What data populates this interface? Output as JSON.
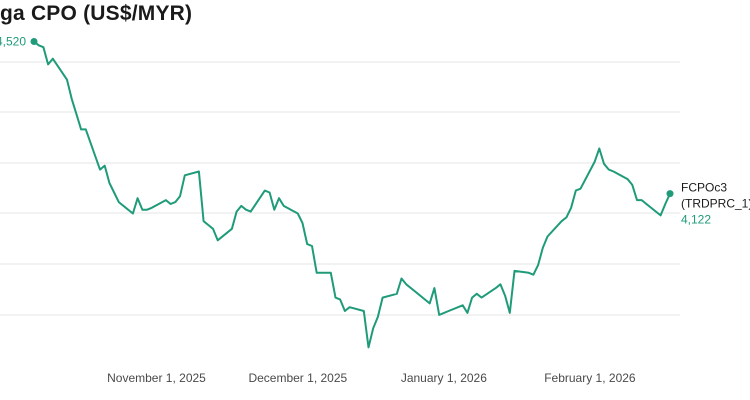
{
  "title_visible": "ga CPO (US$/MYR)",
  "chart_data": {
    "type": "line",
    "title": "ga CPO (US$/MYR)",
    "xlabel": "",
    "ylabel": "",
    "x_ticks": [
      "November 1, 2025",
      "December 1, 2025",
      "January 1, 2026",
      "February 1, 2026"
    ],
    "grid": true,
    "colors": {
      "line": "#1f9b7a",
      "grid": "#e6e6e6"
    },
    "start_label": "4,520",
    "end_label": {
      "ric": "FCPOc3",
      "field": "(TRDPRC_1)",
      "value": "4,122"
    },
    "ylim": [
      3700,
      4550
    ],
    "series": [
      {
        "name": "FCPOc3 (TRDPRC_1)",
        "x": [
          "2025-10-06",
          "2025-10-07",
          "2025-10-08",
          "2025-10-09",
          "2025-10-10",
          "2025-10-13",
          "2025-10-14",
          "2025-10-15",
          "2025-10-16",
          "2025-10-17",
          "2025-10-20",
          "2025-10-21",
          "2025-10-22",
          "2025-10-23",
          "2025-10-24",
          "2025-10-27",
          "2025-10-28",
          "2025-10-29",
          "2025-10-30",
          "2025-10-31",
          "2025-11-03",
          "2025-11-04",
          "2025-11-05",
          "2025-11-06",
          "2025-11-07",
          "2025-11-10",
          "2025-11-11",
          "2025-11-12",
          "2025-11-13",
          "2025-11-14",
          "2025-11-17",
          "2025-11-18",
          "2025-11-19",
          "2025-11-20",
          "2025-11-21",
          "2025-11-24",
          "2025-11-25",
          "2025-11-26",
          "2025-11-27",
          "2025-11-28",
          "2025-12-01",
          "2025-12-02",
          "2025-12-03",
          "2025-12-04",
          "2025-12-05",
          "2025-12-08",
          "2025-12-09",
          "2025-12-10",
          "2025-12-11",
          "2025-12-12",
          "2025-12-15",
          "2025-12-16",
          "2025-12-17",
          "2025-12-18",
          "2025-12-19",
          "2025-12-22",
          "2025-12-23",
          "2025-12-24",
          "2025-12-26",
          "2025-12-29",
          "2025-12-30",
          "2025-12-31",
          "2026-01-02",
          "2026-01-05",
          "2026-01-06",
          "2026-01-07",
          "2026-01-08",
          "2026-01-09",
          "2026-01-12",
          "2026-01-13",
          "2026-01-14",
          "2026-01-15",
          "2026-01-16",
          "2026-01-19",
          "2026-01-20",
          "2026-01-21",
          "2026-01-22",
          "2026-01-23",
          "2026-01-26",
          "2026-01-27",
          "2026-01-28",
          "2026-01-29",
          "2026-01-30",
          "2026-02-02",
          "2026-02-03",
          "2026-02-04",
          "2026-02-05",
          "2026-02-06",
          "2026-02-09",
          "2026-02-10",
          "2026-02-11",
          "2026-02-12",
          "2026-02-13",
          "2026-02-16",
          "2026-02-17",
          "2026-02-18"
        ],
        "values": [
          4520,
          4510,
          4505,
          4460,
          4475,
          4420,
          4370,
          4330,
          4290,
          4290,
          4185,
          4195,
          4150,
          4125,
          4100,
          4070,
          4110,
          4080,
          4080,
          4085,
          4105,
          4095,
          4100,
          4115,
          4170,
          4180,
          4050,
          4040,
          4030,
          4000,
          4030,
          4075,
          4090,
          4080,
          4075,
          4130,
          4125,
          4080,
          4110,
          4090,
          4070,
          4045,
          3990,
          3985,
          3915,
          3915,
          3850,
          3845,
          3815,
          3825,
          3815,
          3720,
          3770,
          3800,
          3850,
          3860,
          3900,
          3885,
          3865,
          3835,
          3875,
          3805,
          3815,
          3830,
          3810,
          3850,
          3860,
          3850,
          3875,
          3885,
          3855,
          3810,
          3920,
          3915,
          3910,
          3935,
          3980,
          4010,
          4050,
          4060,
          4085,
          4130,
          4135,
          4205,
          4240,
          4200,
          4185,
          4180,
          4160,
          4145,
          4105,
          4105,
          4095,
          4065,
          4095,
          4122
        ]
      }
    ]
  }
}
